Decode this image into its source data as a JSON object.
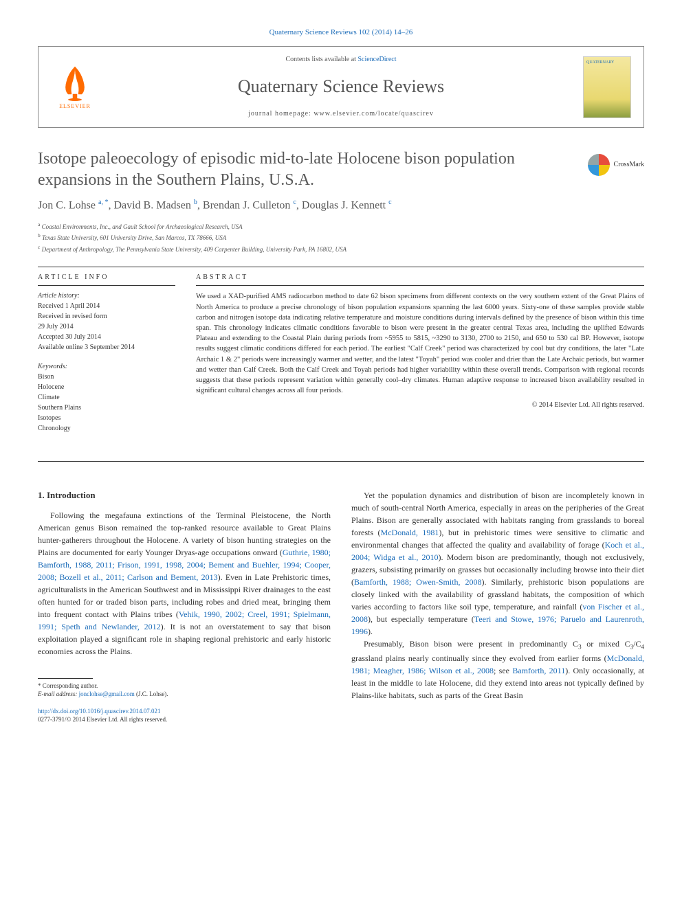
{
  "citation": "Quaternary Science Reviews 102 (2014) 14–26",
  "header": {
    "contents_prefix": "Contents lists available at ",
    "contents_link": "ScienceDirect",
    "journal_name": "Quaternary Science Reviews",
    "homepage_prefix": "journal homepage: ",
    "homepage_url": "www.elsevier.com/locate/quascirev",
    "elsevier_label": "ELSEVIER",
    "cover_label": "QUATERNARY"
  },
  "crossmark_label": "CrossMark",
  "title": "Isotope paleoecology of episodic mid-to-late Holocene bison population expansions in the Southern Plains, U.S.A.",
  "authors_html": "Jon C. Lohse <sup>a, *</sup>, David B. Madsen <sup>b</sup>, Brendan J. Culleton <sup>c</sup>, Douglas J. Kennett <sup>c</sup>",
  "affiliations": [
    {
      "sup": "a",
      "text": "Coastal Environments, Inc., and Gault School for Archaeological Research, USA"
    },
    {
      "sup": "b",
      "text": "Texas State University, 601 University Drive, San Marcos, TX 78666, USA"
    },
    {
      "sup": "c",
      "text": "Department of Anthropology, The Pennsylvania State University, 409 Carpenter Building, University Park, PA 16802, USA"
    }
  ],
  "article_info": {
    "header": "ARTICLE INFO",
    "history_label": "Article history:",
    "history": [
      "Received 1 April 2014",
      "Received in revised form",
      "29 July 2014",
      "Accepted 30 July 2014",
      "Available online 3 September 2014"
    ],
    "keywords_label": "Keywords:",
    "keywords": [
      "Bison",
      "Holocene",
      "Climate",
      "Southern Plains",
      "Isotopes",
      "Chronology"
    ]
  },
  "abstract": {
    "header": "ABSTRACT",
    "text": "We used a XAD-purified AMS radiocarbon method to date 62 bison specimens from different contexts on the very southern extent of the Great Plains of North America to produce a precise chronology of bison population expansions spanning the last 6000 years. Sixty-one of these samples provide stable carbon and nitrogen isotope data indicating relative temperature and moisture conditions during intervals defined by the presence of bison within this time span. This chronology indicates climatic conditions favorable to bison were present in the greater central Texas area, including the uplifted Edwards Plateau and extending to the Coastal Plain during periods from ~5955 to 5815, ~3290 to 3130, 2700 to 2150, and 650 to 530 cal BP. However, isotope results suggest climatic conditions differed for each period. The earliest \"Calf Creek\" period was characterized by cool but dry conditions, the later \"Late Archaic 1 & 2\" periods were increasingly warmer and wetter, and the latest \"Toyah\" period was cooler and drier than the Late Archaic periods, but warmer and wetter than Calf Creek. Both the Calf Creek and Toyah periods had higher variability within these overall trends. Comparison with regional records suggests that these periods represent variation within generally cool–dry climates. Human adaptive response to increased bison availability resulted in significant cultural changes across all four periods.",
    "copyright": "© 2014 Elsevier Ltd. All rights reserved."
  },
  "section1": {
    "heading": "1. Introduction",
    "para1_pre": "Following the megafauna extinctions of the Terminal Pleistocene, the North American genus Bison remained the top-ranked resource available to Great Plains hunter-gatherers throughout the Holocene. A variety of bison hunting strategies on the Plains are documented for early Younger Dryas-age occupations onward (",
    "para1_refs": "Guthrie, 1980; Bamforth, 1988, 2011; Frison, 1991, 1998, 2004; Bement and Buehler, 1994; Cooper, 2008; Bozell et al., 2011; Carlson and Bement, 2013",
    "para1_mid": "). Even in Late Prehistoric times, agriculturalists in the American Southwest and in Mississippi River drainages to the east often hunted for or traded bison parts, including robes and dried meat, bringing them into frequent contact with Plains tribes (",
    "para1_refs2": "Vehik, 1990, 2002; Creel, 1991; Spielmann, 1991; Speth and Newlander, 2012",
    "para1_post": "). It is not an overstatement to say that bison exploitation played a significant role in shaping regional prehistoric and early historic economies across the Plains.",
    "para2_pre": "Yet the population dynamics and distribution of bison are incompletely known in much of south-central North America, especially in areas on the peripheries of the Great Plains. Bison are generally associated with habitats ranging from grasslands to boreal forests (",
    "para2_ref1": "McDonald, 1981",
    "para2_mid1": "), but in prehistoric times were sensitive to climatic and environmental changes that affected the quality and availability of forage (",
    "para2_ref2": "Koch et al., 2004; Widga et al., 2010",
    "para2_mid2": "). Modern bison are predominantly, though not exclusively, grazers, subsisting primarily on grasses but occasionally including browse into their diet (",
    "para2_ref3": "Bamforth, 1988; Owen-Smith, 2008",
    "para2_mid3": "). Similarly, prehistoric bison populations are closely linked with the availability of grassland habitats, the composition of which varies according to factors like soil type, temperature, and rainfall (",
    "para2_ref4": "von Fischer et al., 2008",
    "para2_mid4": "), but especially temperature (",
    "para2_ref5": "Teeri and Stowe, 1976; Paruelo and Laurenroth, 1996",
    "para2_post": ").",
    "para3_pre": "Presumably, Bison bison were present in predominantly C",
    "para3_sub1": "3",
    "para3_mid1": " or mixed C",
    "para3_sub2": "3",
    "para3_mid2": "/C",
    "para3_sub3": "4",
    "para3_mid3": " grassland plains nearly continually since they evolved from earlier forms (",
    "para3_ref1": "McDonald, 1981; Meagher, 1986; Wilson et al., 2008",
    "para3_mid4": "; see ",
    "para3_ref2": "Bamforth, 2011",
    "para3_post": "). Only occasionally, at least in the middle to late Holocene, did they extend into areas not typically defined by Plains-like habitats, such as parts of the Great Basin"
  },
  "footnote": {
    "corr": "* Corresponding author.",
    "email_label": "E-mail address: ",
    "email": "jonclohse@gmail.com",
    "email_name": " (J.C. Lohse)."
  },
  "doi": {
    "url": "http://dx.doi.org/10.1016/j.quascirev.2014.07.021",
    "issn_line": "0277-3791/© 2014 Elsevier Ltd. All rights reserved."
  },
  "colors": {
    "link": "#1a6bb8",
    "text": "#333333",
    "title_gray": "#5a5a5a",
    "elsevier_orange": "#ff6b00"
  }
}
